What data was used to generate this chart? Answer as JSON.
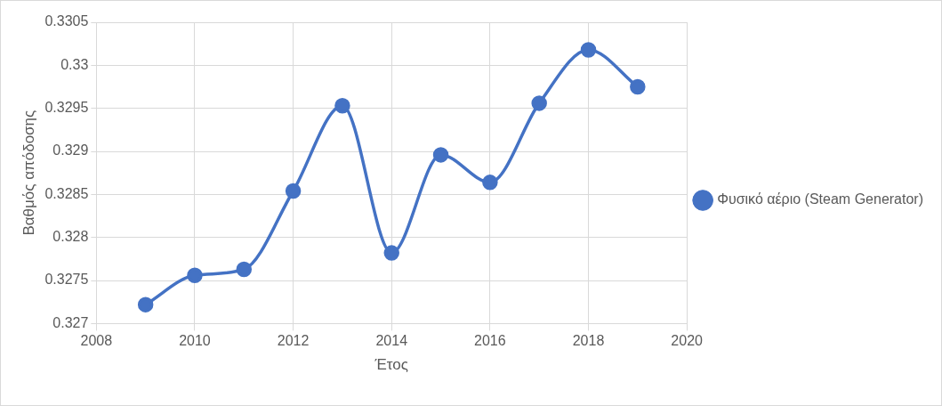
{
  "chart_data": {
    "type": "line",
    "xlabel": "Έτος",
    "ylabel": "Βαθμός απόδοσης",
    "x": [
      2009,
      2010,
      2011,
      2012,
      2013,
      2014,
      2015,
      2016,
      2017,
      2018,
      2019
    ],
    "series": [
      {
        "name": "Φυσικό αέριο (Steam Generator)",
        "color": "#4472c4",
        "values": [
          0.32722,
          0.32756,
          0.32763,
          0.32854,
          0.32953,
          0.32782,
          0.32896,
          0.32864,
          0.32956,
          0.33018,
          0.32975
        ]
      }
    ],
    "xlim": [
      2008,
      2020
    ],
    "xticks": [
      2008,
      2010,
      2012,
      2014,
      2016,
      2018,
      2020
    ],
    "ylim": [
      0.327,
      0.3305
    ],
    "yticks": [
      0.327,
      0.3275,
      0.328,
      0.3285,
      0.329,
      0.3295,
      0.33,
      0.3305
    ],
    "grid": true,
    "legend": "right",
    "marker": "circle",
    "line_style": "solid"
  }
}
